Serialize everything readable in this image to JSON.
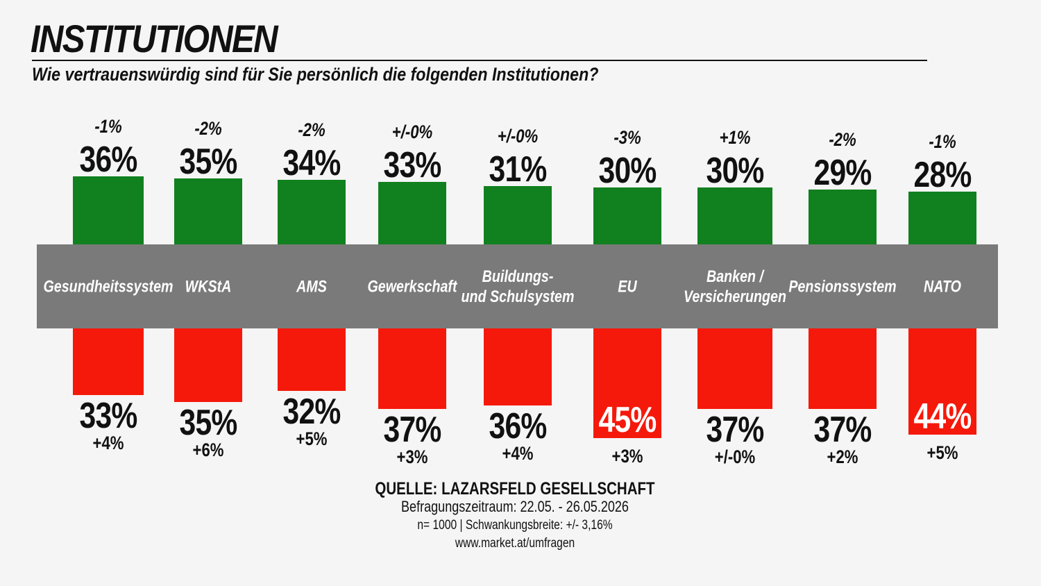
{
  "header": {
    "title": "INSTITUTIONEN",
    "subtitle": "Wie vertrauenswürdig sind für Sie persönlich die folgenden Institutionen?"
  },
  "colors": {
    "trust": "#11801f",
    "distrust": "#f5190b",
    "band": "#7a7a7a"
  },
  "chart_data": {
    "type": "bar",
    "categories": [
      "Gesundheitssystem",
      "WKStA",
      "AMS",
      "Gewerkschaft",
      "Buildungs-\nund Schulsystem",
      "EU",
      "Banken /\nVersicherungen",
      "Pensionssystem",
      "NATO"
    ],
    "series": [
      {
        "values": [
          36,
          35,
          34,
          33,
          31,
          30,
          30,
          29,
          28
        ],
        "labels": [
          "36%",
          "35%",
          "34%",
          "33%",
          "31%",
          "30%",
          "30%",
          "29%",
          "28%"
        ],
        "changes": [
          "-1%",
          "-2%",
          "-2%",
          "+/-0%",
          "+/-0%",
          "-3%",
          "+1%",
          "-2%",
          "-1%"
        ]
      },
      {
        "values": [
          33,
          35,
          32,
          37,
          36,
          45,
          37,
          37,
          44
        ],
        "labels": [
          "33%",
          "35%",
          "32%",
          "37%",
          "36%",
          "45%",
          "37%",
          "37%",
          "44%"
        ],
        "changes": [
          "+4%",
          "+6%",
          "+5%",
          "+3%",
          "+4%",
          "+3%",
          "+/-0%",
          "+2%",
          "+5%"
        ]
      }
    ]
  },
  "source": {
    "title": "QUELLE: LAZARSFELD GESELLSCHAFT",
    "period": "Befragungszeitraum: 22.05. - 26.05.2026",
    "sample": "n= 1000 | Schwankungsbreite: +/- 3,16%",
    "url": "www.market.at/umfragen"
  }
}
